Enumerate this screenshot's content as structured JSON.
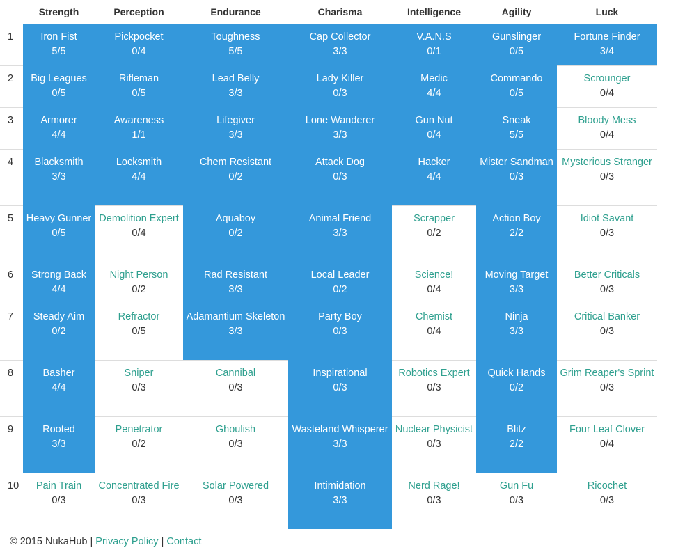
{
  "headers": [
    "Strength",
    "Perception",
    "Endurance",
    "Charisma",
    "Intelligence",
    "Agility",
    "Luck"
  ],
  "rows": [
    {
      "num": "1",
      "cells": [
        {
          "name": "Iron Fist",
          "rank": "5/5",
          "owned": true
        },
        {
          "name": "Pickpocket",
          "rank": "0/4",
          "owned": true
        },
        {
          "name": "Toughness",
          "rank": "5/5",
          "owned": true
        },
        {
          "name": "Cap Collector",
          "rank": "3/3",
          "owned": true
        },
        {
          "name": "V.A.N.S",
          "rank": "0/1",
          "owned": true
        },
        {
          "name": "Gunslinger",
          "rank": "0/5",
          "owned": true
        },
        {
          "name": "Fortune Finder",
          "rank": "3/4",
          "owned": true
        }
      ]
    },
    {
      "num": "2",
      "cells": [
        {
          "name": "Big Leagues",
          "rank": "0/5",
          "owned": true
        },
        {
          "name": "Rifleman",
          "rank": "0/5",
          "owned": true
        },
        {
          "name": "Lead Belly",
          "rank": "3/3",
          "owned": true
        },
        {
          "name": "Lady Killer",
          "rank": "0/3",
          "owned": true
        },
        {
          "name": "Medic",
          "rank": "4/4",
          "owned": true
        },
        {
          "name": "Commando",
          "rank": "0/5",
          "owned": true
        },
        {
          "name": "Scrounger",
          "rank": "0/4",
          "owned": false
        }
      ]
    },
    {
      "num": "3",
      "cells": [
        {
          "name": "Armorer",
          "rank": "4/4",
          "owned": true
        },
        {
          "name": "Awareness",
          "rank": "1/1",
          "owned": true
        },
        {
          "name": "Lifegiver",
          "rank": "3/3",
          "owned": true
        },
        {
          "name": "Lone Wanderer",
          "rank": "3/3",
          "owned": true
        },
        {
          "name": "Gun Nut",
          "rank": "0/4",
          "owned": true
        },
        {
          "name": "Sneak",
          "rank": "5/5",
          "owned": true
        },
        {
          "name": "Bloody Mess",
          "rank": "0/4",
          "owned": false
        }
      ]
    },
    {
      "num": "4",
      "cells": [
        {
          "name": "Blacksmith",
          "rank": "3/3",
          "owned": true
        },
        {
          "name": "Locksmith",
          "rank": "4/4",
          "owned": true
        },
        {
          "name": "Chem Resistant",
          "rank": "0/2",
          "owned": true
        },
        {
          "name": "Attack Dog",
          "rank": "0/3",
          "owned": true
        },
        {
          "name": "Hacker",
          "rank": "4/4",
          "owned": true
        },
        {
          "name": "Mister Sandman",
          "rank": "0/3",
          "owned": true
        },
        {
          "name": "Mysterious Stranger",
          "rank": "0/3",
          "owned": false
        }
      ]
    },
    {
      "num": "5",
      "cells": [
        {
          "name": "Heavy Gunner",
          "rank": "0/5",
          "owned": true
        },
        {
          "name": "Demolition Expert",
          "rank": "0/4",
          "owned": false
        },
        {
          "name": "Aquaboy",
          "rank": "0/2",
          "owned": true
        },
        {
          "name": "Animal Friend",
          "rank": "3/3",
          "owned": true
        },
        {
          "name": "Scrapper",
          "rank": "0/2",
          "owned": false
        },
        {
          "name": "Action Boy",
          "rank": "2/2",
          "owned": true
        },
        {
          "name": "Idiot Savant",
          "rank": "0/3",
          "owned": false
        }
      ]
    },
    {
      "num": "6",
      "cells": [
        {
          "name": "Strong Back",
          "rank": "4/4",
          "owned": true
        },
        {
          "name": "Night Person",
          "rank": "0/2",
          "owned": false
        },
        {
          "name": "Rad Resistant",
          "rank": "3/3",
          "owned": true
        },
        {
          "name": "Local Leader",
          "rank": "0/2",
          "owned": true
        },
        {
          "name": "Science!",
          "rank": "0/4",
          "owned": false
        },
        {
          "name": "Moving Target",
          "rank": "3/3",
          "owned": true
        },
        {
          "name": "Better Criticals",
          "rank": "0/3",
          "owned": false
        }
      ]
    },
    {
      "num": "7",
      "cells": [
        {
          "name": "Steady Aim",
          "rank": "0/2",
          "owned": true
        },
        {
          "name": "Refractor",
          "rank": "0/5",
          "owned": false
        },
        {
          "name": "Adamantium Skeleton",
          "rank": "3/3",
          "owned": true
        },
        {
          "name": "Party Boy",
          "rank": "0/3",
          "owned": true
        },
        {
          "name": "Chemist",
          "rank": "0/4",
          "owned": false
        },
        {
          "name": "Ninja",
          "rank": "3/3",
          "owned": true
        },
        {
          "name": "Critical Banker",
          "rank": "0/3",
          "owned": false
        }
      ]
    },
    {
      "num": "8",
      "cells": [
        {
          "name": "Basher",
          "rank": "4/4",
          "owned": true
        },
        {
          "name": "Sniper",
          "rank": "0/3",
          "owned": false
        },
        {
          "name": "Cannibal",
          "rank": "0/3",
          "owned": false
        },
        {
          "name": "Inspirational",
          "rank": "0/3",
          "owned": true
        },
        {
          "name": "Robotics Expert",
          "rank": "0/3",
          "owned": false
        },
        {
          "name": "Quick Hands",
          "rank": "0/2",
          "owned": true
        },
        {
          "name": "Grim Reaper's Sprint",
          "rank": "0/3",
          "owned": false
        }
      ]
    },
    {
      "num": "9",
      "cells": [
        {
          "name": "Rooted",
          "rank": "3/3",
          "owned": true
        },
        {
          "name": "Penetrator",
          "rank": "0/2",
          "owned": false
        },
        {
          "name": "Ghoulish",
          "rank": "0/3",
          "owned": false
        },
        {
          "name": "Wasteland Whisperer",
          "rank": "3/3",
          "owned": true
        },
        {
          "name": "Nuclear Physicist",
          "rank": "0/3",
          "owned": false
        },
        {
          "name": "Blitz",
          "rank": "2/2",
          "owned": true
        },
        {
          "name": "Four Leaf Clover",
          "rank": "0/4",
          "owned": false
        }
      ]
    },
    {
      "num": "10",
      "cells": [
        {
          "name": "Pain Train",
          "rank": "0/3",
          "owned": false
        },
        {
          "name": "Concentrated Fire",
          "rank": "0/3",
          "owned": false
        },
        {
          "name": "Solar Powered",
          "rank": "0/3",
          "owned": false
        },
        {
          "name": "Intimidation",
          "rank": "3/3",
          "owned": true
        },
        {
          "name": "Nerd Rage!",
          "rank": "0/3",
          "owned": false
        },
        {
          "name": "Gun Fu",
          "rank": "0/3",
          "owned": false
        },
        {
          "name": "Ricochet",
          "rank": "0/3",
          "owned": false
        }
      ]
    }
  ],
  "footer": {
    "copyright": "© 2015 NukaHub",
    "sep": "|",
    "privacy": "Privacy Policy",
    "contact": "Contact"
  },
  "colors": {
    "owned_bg": "#3498db",
    "link": "#2fa08f"
  }
}
